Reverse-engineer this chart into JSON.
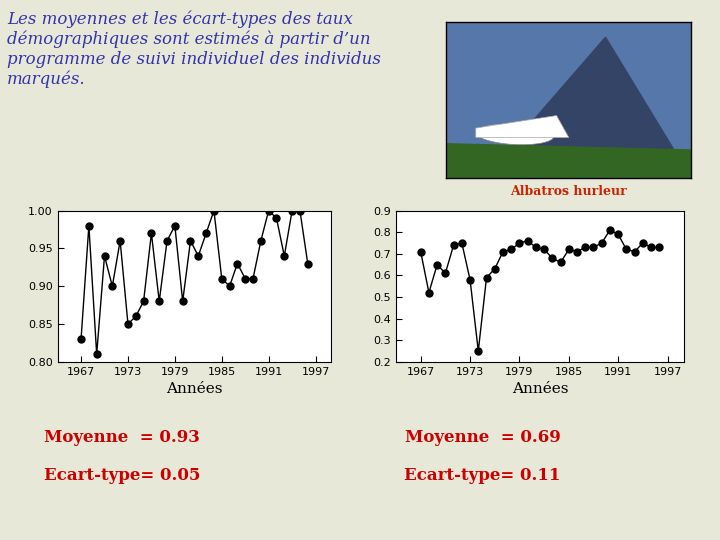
{
  "title_text": "Les moyennes et les écart-types des taux\ndémographiques sont estimés à partir d’un\nprogramme de suivi individuel des individus\nmarqués.",
  "title_color": "#3333aa",
  "caption_text": "Albatros hurleur",
  "caption_color": "#cc2200",
  "background_color": "#e8e8d8",
  "chart1": {
    "years": [
      1967,
      1968,
      1969,
      1970,
      1971,
      1972,
      1973,
      1974,
      1975,
      1976,
      1977,
      1978,
      1979,
      1980,
      1981,
      1982,
      1983,
      1984,
      1985,
      1986,
      1987,
      1988,
      1989,
      1990,
      1991,
      1992,
      1993,
      1994,
      1995,
      1996
    ],
    "values": [
      0.83,
      0.98,
      0.81,
      0.94,
      0.9,
      0.96,
      0.85,
      0.86,
      0.88,
      0.97,
      0.88,
      0.96,
      0.98,
      0.88,
      0.96,
      0.94,
      0.97,
      1.0,
      0.91,
      0.9,
      0.93,
      0.91,
      0.91,
      0.96,
      1.0,
      0.99,
      0.94,
      1.0,
      1.0,
      0.93
    ],
    "xlabel": "Années",
    "ylim": [
      0.8,
      1.0
    ],
    "yticks": [
      0.8,
      0.85,
      0.9,
      0.95,
      1.0
    ],
    "xticks": [
      1967,
      1973,
      1979,
      1985,
      1991,
      1997
    ],
    "mean_text": "Moyenne  = 0.93",
    "sd_text": "Ecart-type= 0.05"
  },
  "chart2": {
    "years": [
      1967,
      1968,
      1969,
      1970,
      1971,
      1972,
      1973,
      1974,
      1975,
      1976,
      1977,
      1978,
      1979,
      1980,
      1981,
      1982,
      1983,
      1984,
      1985,
      1986,
      1987,
      1988,
      1989,
      1990,
      1991,
      1992,
      1993,
      1994,
      1995,
      1996
    ],
    "values": [
      0.71,
      0.52,
      0.65,
      0.61,
      0.74,
      0.75,
      0.58,
      0.25,
      0.59,
      0.63,
      0.71,
      0.72,
      0.75,
      0.76,
      0.73,
      0.72,
      0.68,
      0.66,
      0.72,
      0.71,
      0.73,
      0.73,
      0.75,
      0.81,
      0.79,
      0.72,
      0.71,
      0.75,
      0.73,
      0.73
    ],
    "xlabel": "Années",
    "ylim": [
      0.2,
      0.9
    ],
    "yticks": [
      0.2,
      0.3,
      0.4,
      0.5,
      0.6,
      0.7,
      0.8,
      0.9
    ],
    "xticks": [
      1967,
      1973,
      1979,
      1985,
      1991,
      1997
    ],
    "mean_text": "Moyenne  = 0.69",
    "sd_text": "Ecart-type= 0.11"
  },
  "stats_color": "#cc0000",
  "stats_fontsize": 12,
  "plot_color": "black",
  "marker": "o",
  "markersize": 5,
  "linewidth": 1.0
}
